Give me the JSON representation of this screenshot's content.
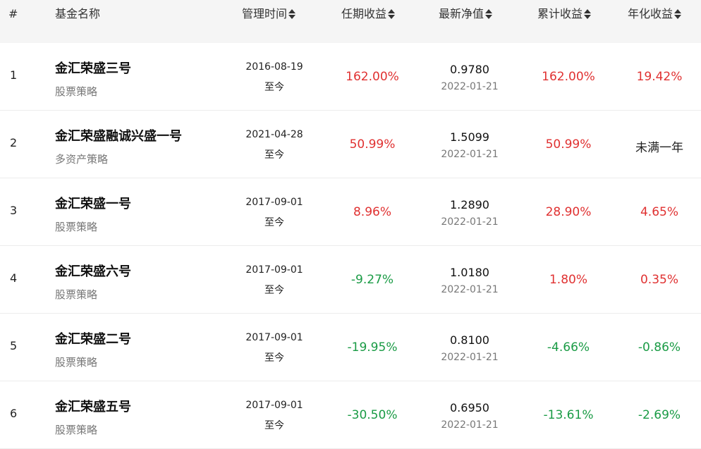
{
  "colors": {
    "positive": "#e03131",
    "negative": "#1a9b45",
    "neutral": "#222222"
  },
  "header": {
    "index": "#",
    "fund_name": "基金名称",
    "manage_time": "管理时间",
    "tenure_return": "任期收益",
    "latest_nav": "最新净值",
    "cumulative_return": "累计收益",
    "annual_return": "年化收益",
    "sort_icon": "sort-updown-icon"
  },
  "rows": [
    {
      "index": "1",
      "name": "金汇荣盛三号",
      "strategy": "股票策略",
      "start": "2016-08-19",
      "end": "至今",
      "tenure": "162.00%",
      "tenure_sign": "pos",
      "nav": "0.9780",
      "nav_date": "2022-01-21",
      "cumulative": "162.00%",
      "cumulative_sign": "pos",
      "annual": "19.42%",
      "annual_sign": "pos"
    },
    {
      "index": "2",
      "name": "金汇荣盛融诚兴盛一号",
      "strategy": "多资产策略",
      "start": "2021-04-28",
      "end": "至今",
      "tenure": "50.99%",
      "tenure_sign": "pos",
      "nav": "1.5099",
      "nav_date": "2022-01-21",
      "cumulative": "50.99%",
      "cumulative_sign": "pos",
      "annual": "未满一年",
      "annual_sign": "neutral"
    },
    {
      "index": "3",
      "name": "金汇荣盛一号",
      "strategy": "股票策略",
      "start": "2017-09-01",
      "end": "至今",
      "tenure": "8.96%",
      "tenure_sign": "pos",
      "nav": "1.2890",
      "nav_date": "2022-01-21",
      "cumulative": "28.90%",
      "cumulative_sign": "pos",
      "annual": "4.65%",
      "annual_sign": "pos"
    },
    {
      "index": "4",
      "name": "金汇荣盛六号",
      "strategy": "股票策略",
      "start": "2017-09-01",
      "end": "至今",
      "tenure": "-9.27%",
      "tenure_sign": "neg",
      "nav": "1.0180",
      "nav_date": "2022-01-21",
      "cumulative": "1.80%",
      "cumulative_sign": "pos",
      "annual": "0.35%",
      "annual_sign": "pos"
    },
    {
      "index": "5",
      "name": "金汇荣盛二号",
      "strategy": "股票策略",
      "start": "2017-09-01",
      "end": "至今",
      "tenure": "-19.95%",
      "tenure_sign": "neg",
      "nav": "0.8100",
      "nav_date": "2022-01-21",
      "cumulative": "-4.66%",
      "cumulative_sign": "neg",
      "annual": "-0.86%",
      "annual_sign": "neg"
    },
    {
      "index": "6",
      "name": "金汇荣盛五号",
      "strategy": "股票策略",
      "start": "2017-09-01",
      "end": "至今",
      "tenure": "-30.50%",
      "tenure_sign": "neg",
      "nav": "0.6950",
      "nav_date": "2022-01-21",
      "cumulative": "-13.61%",
      "cumulative_sign": "neg",
      "annual": "-2.69%",
      "annual_sign": "neg"
    }
  ]
}
